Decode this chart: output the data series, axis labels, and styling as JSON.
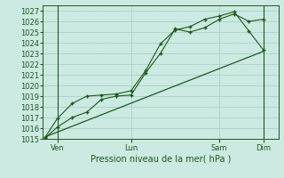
{
  "xlabel": "Pression niveau de la mer( hPa )",
  "ylim": [
    1015,
    1027.5
  ],
  "yticks": [
    1015,
    1016,
    1017,
    1018,
    1019,
    1020,
    1021,
    1022,
    1023,
    1024,
    1025,
    1026,
    1027
  ],
  "background_color": "#cce9e2",
  "grid_color": "#aad6cc",
  "line_color": "#1a5c1a",
  "text_color": "#1a5c1a",
  "xtick_labels": [
    "Ven",
    "Lun",
    "Sam",
    "Dim"
  ],
  "xtick_positions": [
    0.5,
    3.0,
    6.0,
    7.5
  ],
  "xlim": [
    0,
    8.0
  ],
  "series1_x": [
    0.1,
    0.5,
    1.0,
    1.5,
    2.0,
    2.5,
    3.0,
    3.5,
    4.0,
    4.5,
    5.0,
    5.5,
    6.0,
    6.5,
    7.0,
    7.5
  ],
  "series1_y": [
    1015.1,
    1016.1,
    1017.0,
    1017.5,
    1018.7,
    1019.0,
    1019.1,
    1021.2,
    1023.0,
    1025.3,
    1025.0,
    1025.4,
    1026.2,
    1026.7,
    1026.0,
    1026.2
  ],
  "series2_x": [
    0.1,
    0.5,
    1.0,
    1.5,
    2.0,
    2.5,
    3.0,
    3.5,
    4.0,
    4.5,
    5.0,
    5.5,
    6.0,
    6.5,
    7.0,
    7.5
  ],
  "series2_y": [
    1015.2,
    1016.9,
    1018.3,
    1019.0,
    1019.1,
    1019.2,
    1019.5,
    1021.4,
    1023.9,
    1025.2,
    1025.5,
    1026.2,
    1026.5,
    1026.9,
    1025.1,
    1023.3
  ],
  "series3_x": [
    0.1,
    7.5
  ],
  "series3_y": [
    1015.2,
    1023.2
  ],
  "vline1_x": 0.5,
  "vline2_x": 7.5
}
